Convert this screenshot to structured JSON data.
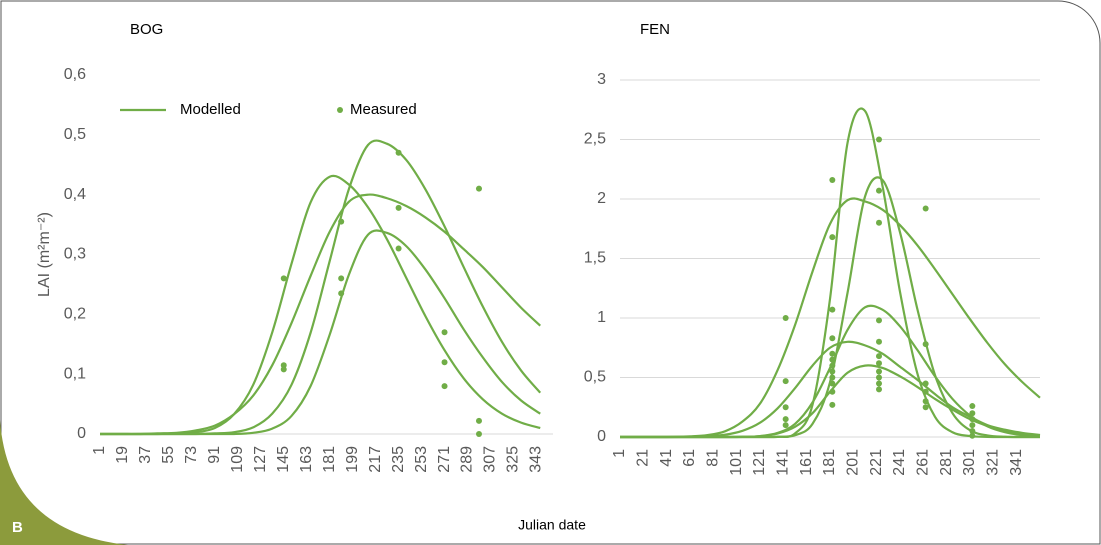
{
  "panel_label": "B",
  "x_label": "Julian date",
  "chart_data": [
    {
      "type": "line",
      "title": "BOG",
      "y_label": "LAI (m²m⁻²)",
      "color": "#70ad47",
      "grid": false,
      "legend": [
        "Modelled",
        "Measured"
      ],
      "xlim": [
        1,
        356
      ],
      "xticks": [
        1,
        19,
        37,
        55,
        73,
        91,
        109,
        127,
        145,
        163,
        181,
        199,
        217,
        235,
        253,
        271,
        289,
        307,
        325,
        343
      ],
      "ylim": [
        0,
        0.6
      ],
      "yticks": [
        0,
        {
          "value": 0.1,
          "label": "0,1"
        },
        {
          "value": 0.2,
          "label": "0,2"
        },
        {
          "value": 0.3,
          "label": "0,3"
        },
        {
          "value": 0.4,
          "label": "0,4"
        },
        {
          "value": 0.5,
          "label": "0,5"
        },
        {
          "value": 0.6,
          "label": "0,6"
        }
      ],
      "x": [
        1,
        16,
        31,
        46,
        61,
        76,
        91,
        106,
        121,
        136,
        151,
        166,
        181,
        196,
        211,
        226,
        241,
        256,
        271,
        286,
        301,
        316,
        331,
        346
      ],
      "series": [
        {
          "values": [
            0,
            0,
            0,
            0,
            0.001,
            0.003,
            0.01,
            0.033,
            0.082,
            0.17,
            0.284,
            0.387,
            0.43,
            0.417,
            0.379,
            0.325,
            0.261,
            0.197,
            0.14,
            0.093,
            0.058,
            0.034,
            0.019,
            0.01
          ]
        },
        {
          "values": [
            0,
            0,
            0,
            0,
            0,
            0,
            0.001,
            0.003,
            0.011,
            0.034,
            0.082,
            0.169,
            0.289,
            0.409,
            0.483,
            0.485,
            0.458,
            0.409,
            0.347,
            0.279,
            0.213,
            0.154,
            0.106,
            0.069
          ]
        },
        {
          "values": [
            0,
            0,
            0,
            0.001,
            0.002,
            0.006,
            0.014,
            0.033,
            0.064,
            0.115,
            0.185,
            0.264,
            0.338,
            0.388,
            0.4,
            0.394,
            0.381,
            0.362,
            0.338,
            0.309,
            0.279,
            0.245,
            0.211,
            0.181
          ]
        },
        {
          "values": [
            0,
            0,
            0,
            0,
            0,
            0,
            0,
            0,
            0.002,
            0.009,
            0.03,
            0.08,
            0.166,
            0.266,
            0.333,
            0.336,
            0.314,
            0.275,
            0.227,
            0.175,
            0.128,
            0.087,
            0.056,
            0.034
          ]
        }
      ],
      "measured": {
        "x": [
          145,
          145,
          145,
          190,
          190,
          190,
          235,
          235,
          235,
          271,
          271,
          271,
          298,
          298,
          298
        ],
        "values": [
          0.26,
          0.115,
          0.108,
          0.355,
          0.26,
          0.235,
          0.47,
          0.378,
          0.31,
          0.17,
          0.12,
          0.08,
          0.41,
          0.022,
          0
        ]
      }
    },
    {
      "type": "line",
      "title": "FEN",
      "color": "#70ad47",
      "grid": true,
      "xlim": [
        1,
        361
      ],
      "xticks": [
        1,
        21,
        41,
        61,
        81,
        101,
        121,
        141,
        161,
        181,
        201,
        221,
        241,
        261,
        281,
        301,
        321,
        341
      ],
      "ylim": [
        0,
        3
      ],
      "yticks": [
        0,
        {
          "value": 0.5,
          "label": "0,5"
        },
        1,
        {
          "value": 1.5,
          "label": "1,5"
        },
        2,
        {
          "value": 2.5,
          "label": "2,5"
        },
        3
      ],
      "x": [
        1,
        16,
        31,
        46,
        61,
        76,
        91,
        106,
        121,
        136,
        151,
        166,
        181,
        196,
        211,
        226,
        241,
        256,
        271,
        286,
        301,
        316,
        331,
        346,
        361
      ],
      "series": [
        {
          "values": [
            0,
            0,
            0,
            0,
            0,
            0,
            0,
            0,
            0,
            0.002,
            0.03,
            0.27,
            1.16,
            2.47,
            2.74,
            2.11,
            1.22,
            0.53,
            0.17,
            0.04,
            0.008,
            0.001,
            0,
            0,
            0
          ]
        },
        {
          "values": [
            0,
            0,
            0,
            0,
            0,
            0,
            0,
            0,
            0,
            0.001,
            0.015,
            0.11,
            0.46,
            1.21,
            2.02,
            2.16,
            1.72,
            1.07,
            0.52,
            0.2,
            0.057,
            0.013,
            0.002,
            0,
            0
          ]
        },
        {
          "values": [
            0,
            0,
            0,
            0.001,
            0.005,
            0.016,
            0.048,
            0.13,
            0.28,
            0.56,
            0.94,
            1.39,
            1.79,
            1.99,
            1.98,
            1.91,
            1.78,
            1.61,
            1.41,
            1.2,
            0.99,
            0.79,
            0.61,
            0.46,
            0.33
          ]
        },
        {
          "values": [
            0,
            0,
            0,
            0,
            0,
            0,
            0,
            0.001,
            0.008,
            0.034,
            0.11,
            0.29,
            0.58,
            0.9,
            1.09,
            1.07,
            0.93,
            0.73,
            0.51,
            0.32,
            0.18,
            0.089,
            0.04,
            0.015,
            0.006
          ]
        },
        {
          "values": [
            0,
            0,
            0,
            0,
            0.002,
            0.006,
            0.019,
            0.052,
            0.12,
            0.24,
            0.41,
            0.6,
            0.75,
            0.8,
            0.77,
            0.7,
            0.59,
            0.48,
            0.36,
            0.25,
            0.17,
            0.1,
            0.061,
            0.034,
            0.017
          ]
        },
        {
          "values": [
            0,
            0,
            0,
            0,
            0,
            0,
            0,
            0.002,
            0.007,
            0.029,
            0.086,
            0.2,
            0.38,
            0.54,
            0.6,
            0.58,
            0.51,
            0.42,
            0.32,
            0.23,
            0.15,
            0.093,
            0.053,
            0.028,
            0.014
          ]
        }
      ],
      "measured": {
        "x": [
          143,
          143,
          143,
          143,
          143,
          183,
          183,
          183,
          183,
          183,
          183,
          183,
          183,
          183,
          183,
          183,
          183,
          223,
          223,
          223,
          223,
          223,
          223,
          223,
          223,
          223,
          223,
          223,
          263,
          263,
          263,
          263,
          263,
          263,
          303,
          303,
          303,
          303,
          303,
          303
        ],
        "values": [
          1.0,
          0.47,
          0.25,
          0.15,
          0.1,
          2.16,
          1.68,
          1.07,
          0.83,
          0.7,
          0.65,
          0.6,
          0.55,
          0.5,
          0.45,
          0.38,
          0.27,
          2.5,
          2.07,
          1.8,
          0.98,
          0.8,
          0.68,
          0.62,
          0.55,
          0.5,
          0.45,
          0.4,
          1.92,
          0.78,
          0.45,
          0.38,
          0.3,
          0.25,
          0.26,
          0.2,
          0.15,
          0.1,
          0.05,
          0.01
        ]
      }
    }
  ]
}
